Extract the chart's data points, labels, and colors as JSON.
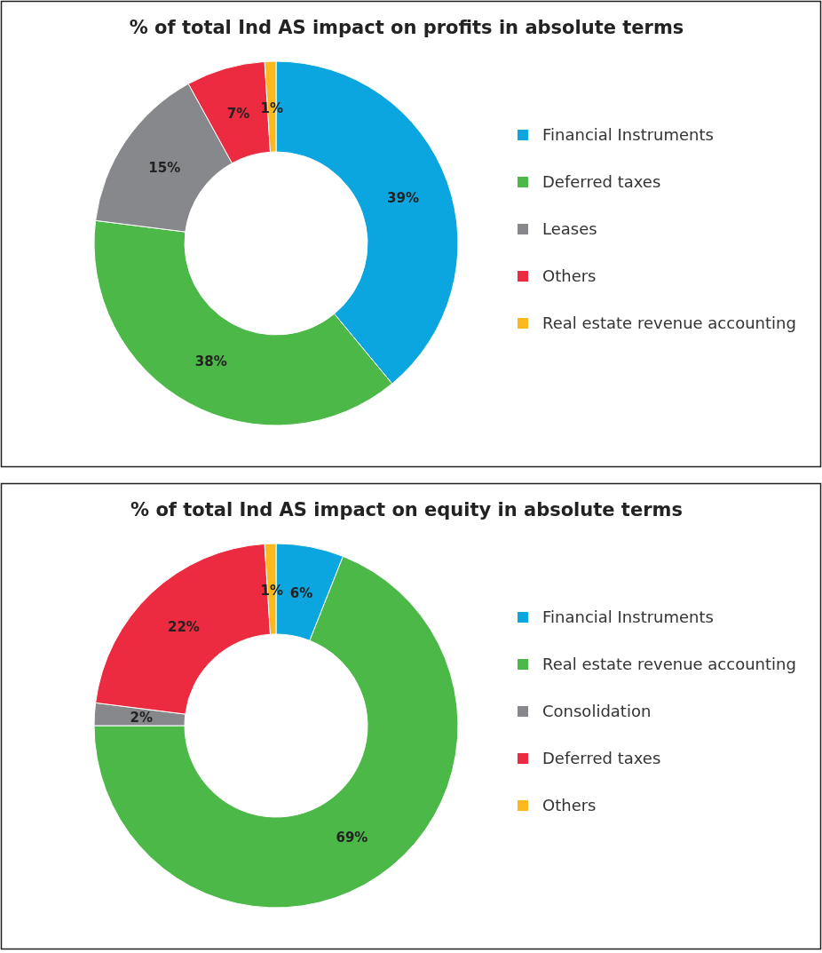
{
  "chart_data": [
    {
      "type": "donut",
      "title": "% of total Ind AS impact on profits in absolute terms",
      "categories": [
        "Financial Instruments",
        "Deferred taxes",
        "Leases",
        "Others",
        "Real estate revenue accounting"
      ],
      "values": [
        39,
        38,
        15,
        7,
        1
      ],
      "value_labels": [
        "39%",
        "38%",
        "15%",
        "7%",
        "1%"
      ],
      "colors": [
        "#0ba6df",
        "#4cb848",
        "#87888b",
        "#ec2b40",
        "#fbb91e"
      ],
      "legend": "right"
    },
    {
      "type": "donut",
      "title": "% of total Ind AS impact on equity in absolute terms",
      "categories": [
        "Financial Instruments",
        "Real estate revenue accounting",
        "Consolidation",
        "Deferred taxes",
        "Others"
      ],
      "values": [
        6,
        69,
        2,
        22,
        1
      ],
      "value_labels": [
        "6%",
        "69%",
        "2%",
        "22%",
        "1%"
      ],
      "colors": [
        "#0ba6df",
        "#4cb848",
        "#87888b",
        "#ec2b40",
        "#fbb91e"
      ],
      "legend": "right"
    }
  ]
}
